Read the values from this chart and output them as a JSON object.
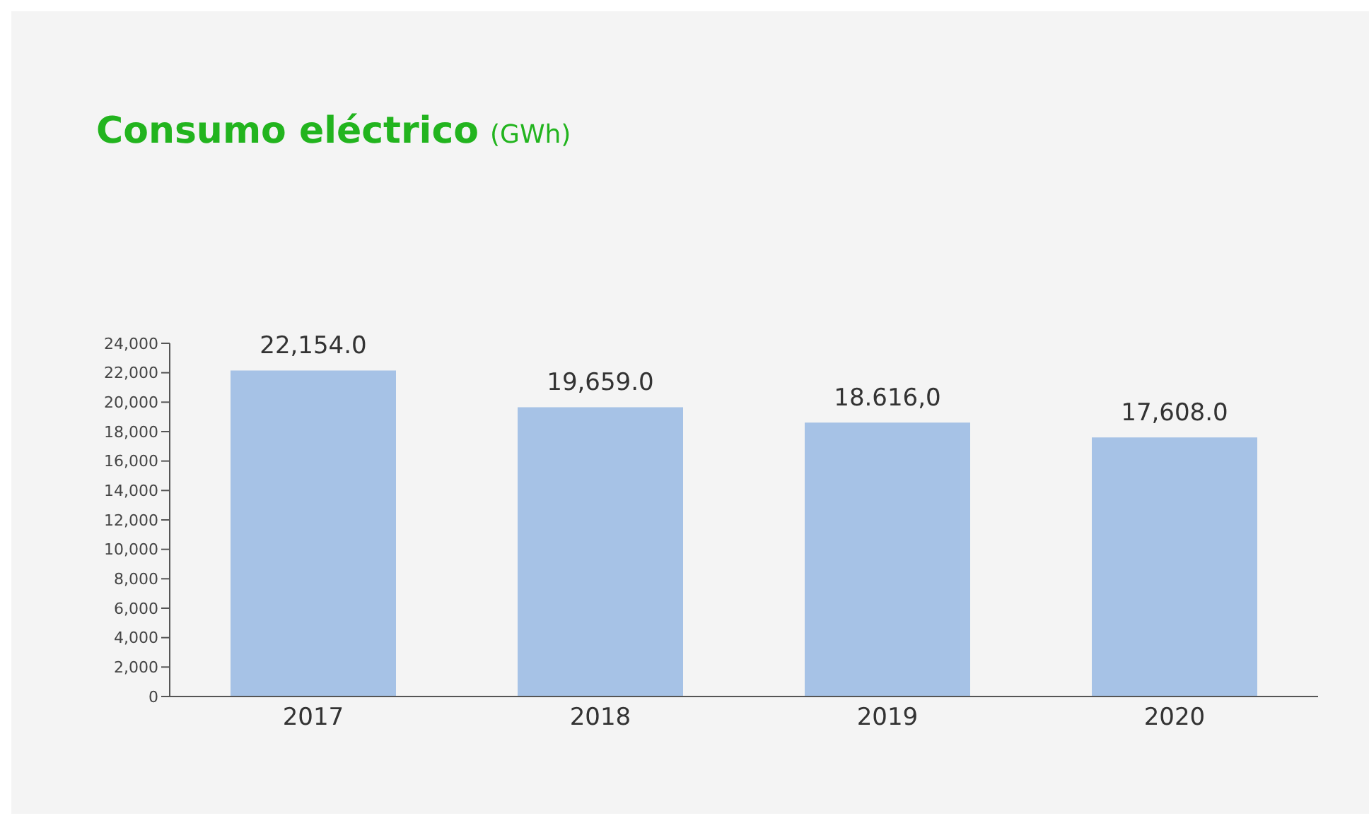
{
  "chart_data": {
    "type": "bar",
    "title": "Consumo eléctrico",
    "subtitle": "(GWh)",
    "categories": [
      "2017",
      "2018",
      "2019",
      "2020"
    ],
    "values": [
      22154,
      19659,
      18616,
      17608
    ],
    "value_labels": [
      "22,154.0",
      "19,659.0",
      "18.616,0",
      "17,608.0"
    ],
    "color": "#a6c2e6",
    "ylim": [
      0,
      24000
    ],
    "yticks": [
      {
        "value": 0,
        "label": "0"
      },
      {
        "value": 2000,
        "label": "2,000"
      },
      {
        "value": 4000,
        "label": "4,000"
      },
      {
        "value": 6000,
        "label": "6,000"
      },
      {
        "value": 8000,
        "label": "8,000"
      },
      {
        "value": 10000,
        "label": "10,000"
      },
      {
        "value": 12000,
        "label": "12,000"
      },
      {
        "value": 14000,
        "label": "14,000"
      },
      {
        "value": 16000,
        "label": "16,000"
      },
      {
        "value": 18000,
        "label": "18,000"
      },
      {
        "value": 20000,
        "label": "20,000"
      },
      {
        "value": 22000,
        "label": "22,000"
      },
      {
        "value": 24000,
        "label": "24,000"
      }
    ],
    "grid": false,
    "legend": false
  }
}
